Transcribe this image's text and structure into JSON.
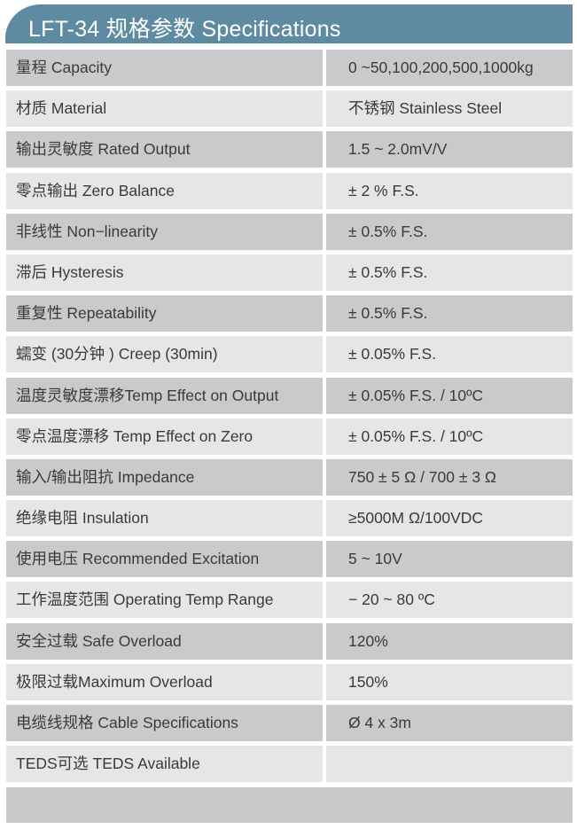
{
  "title": "LFT-34 规格参数 Specifications",
  "colors": {
    "header": "#5f8ba2",
    "row_dark": "#c9cacb",
    "row_light": "#e6e6e7"
  },
  "rows": [
    {
      "label": "量程 Capacity",
      "value": "0 ~50,100,200,500,1000kg"
    },
    {
      "label": "材质 Material",
      "value": "不锈钢 Stainless Steel"
    },
    {
      "label": "输出灵敏度 Rated Output",
      "value": "1.5 ~ 2.0mV/V"
    },
    {
      "label": "零点输出  Zero Balance",
      "value": "± 2 % F.S."
    },
    {
      "label": "非线性 Non−linearity",
      "value": "± 0.5% F.S."
    },
    {
      "label": "滞后 Hysteresis",
      "value": "± 0.5% F.S."
    },
    {
      "label": "重复性 Repeatability",
      "value": "± 0.5% F.S."
    },
    {
      "label": "蠕变 (30分钟 ) Creep (30min)",
      "value": "± 0.05% F.S."
    },
    {
      "label": "温度灵敏度漂移Temp Effect on Output",
      "value": "± 0.05% F.S. / 10ºC"
    },
    {
      "label": "零点温度漂移 Temp Effect on Zero",
      "value": "± 0.05% F.S. / 10ºC"
    },
    {
      "label": "输入/输出阻抗 Impedance",
      "value": "750 ± 5 Ω  / 700 ± 3 Ω"
    },
    {
      "label": "绝缘电阻  Insulation",
      "value": "≥5000M Ω/100VDC"
    },
    {
      "label": "使用电压 Recommended Excitation",
      "value": "5 ~ 10V"
    },
    {
      "label": "工作温度范围 Operating Temp  Range",
      "value": "− 20 ~ 80 ºC"
    },
    {
      "label": "安全过载 Safe Overload",
      "value": "120%"
    },
    {
      "label": "极限过载Maximum Overload",
      "value": "150%"
    },
    {
      "label": "电缆线规格 Cable Specifications",
      "value": "Ø 4 x 3m"
    },
    {
      "label": "TEDS可选 TEDS Available",
      "value": ""
    }
  ]
}
